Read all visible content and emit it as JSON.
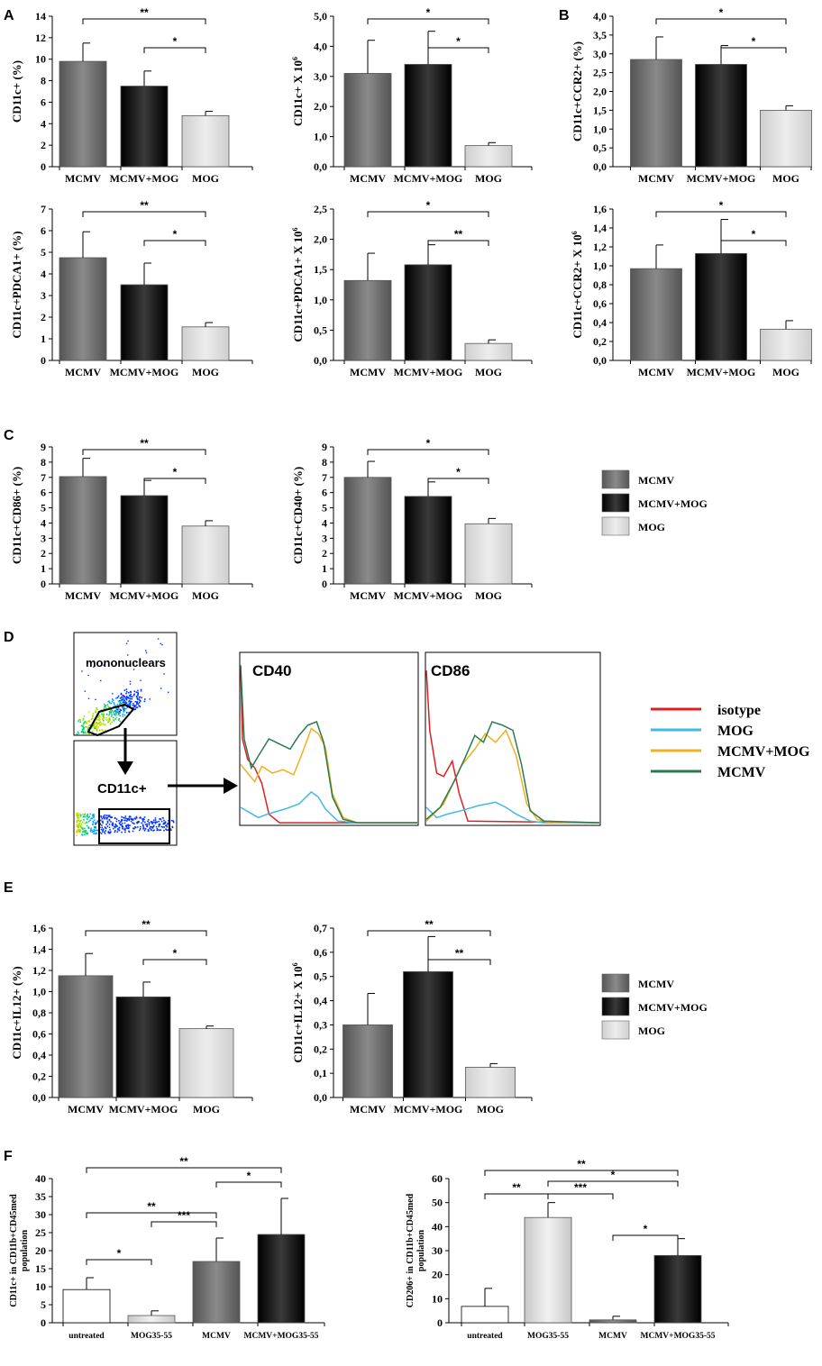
{
  "colors": {
    "mcmv": "#777777",
    "mcmv_mog": "#1a1a1a",
    "mog": "#dcdcdc",
    "untreated": "#ffffff",
    "iso": "#e02020",
    "mog_line": "#40b8e8",
    "mcmv_mog_line": "#f0b020",
    "mcmv_line": "#2a7a50"
  },
  "panels": {
    "A": "A",
    "B": "B",
    "C": "C",
    "D": "D",
    "E": "E",
    "F": "F"
  },
  "legend_bars": [
    {
      "label": "MCMV",
      "color": "mcmv"
    },
    {
      "label": "MCMV+MOG",
      "color": "mcmv_mog"
    },
    {
      "label": "MOG",
      "color": "mog"
    }
  ],
  "flow": {
    "gate1_label": "mononuclears",
    "gate2_label": "CD11c+",
    "hist1_title": "CD40",
    "hist2_title": "CD86",
    "legend": [
      {
        "label": "isotype",
        "color": "iso"
      },
      {
        "label": "MOG",
        "color": "mog_line"
      },
      {
        "label": "MCMV+MOG",
        "color": "mcmv_mog_line"
      },
      {
        "label": "MCMV",
        "color": "mcmv_line"
      }
    ]
  },
  "chart_data": [
    {
      "id": "A1",
      "type": "bar",
      "ylabel": "CD11c+   (%)",
      "categories": [
        "MCMV",
        "MCMV+MOG",
        "MOG"
      ],
      "values": [
        9.8,
        7.5,
        4.75
      ],
      "errors": [
        1.7,
        1.4,
        0.4
      ],
      "ylim": [
        0,
        14
      ],
      "yticks": [
        "0",
        "2",
        "4",
        "6",
        "8",
        "10",
        "12",
        "14"
      ],
      "sig": [
        {
          "from": 0,
          "to": 2,
          "label": "**"
        },
        {
          "from": 1,
          "to": 2,
          "label": "*"
        }
      ]
    },
    {
      "id": "A2",
      "type": "bar",
      "ylabel": "CD11c+ X 10",
      "ysup": "6",
      "categories": [
        "MCMV",
        "MCMV+MOG",
        "MOG"
      ],
      "values": [
        3.1,
        3.4,
        0.7
      ],
      "errors": [
        1.1,
        1.1,
        0.1
      ],
      "ylim": [
        0,
        5
      ],
      "yticks": [
        "0,0",
        "1,0",
        "2,0",
        "3,0",
        "4,0",
        "5,0"
      ],
      "sig": [
        {
          "from": 0,
          "to": 2,
          "label": "*"
        },
        {
          "from": 1,
          "to": 2,
          "label": "*"
        }
      ]
    },
    {
      "id": "B1",
      "type": "bar",
      "ylabel": "CD11c+CCR2+   (%)",
      "categories": [
        "MCMV",
        "MCMV+MOG",
        "MOG"
      ],
      "values": [
        2.85,
        2.72,
        1.5
      ],
      "errors": [
        0.6,
        0.5,
        0.12
      ],
      "ylim": [
        0,
        4
      ],
      "yticks": [
        "0,0",
        "0,5",
        "1,0",
        "1,5",
        "2,0",
        "2,5",
        "3,0",
        "3,5",
        "4,0"
      ],
      "sig": [
        {
          "from": 0,
          "to": 2,
          "label": "*"
        },
        {
          "from": 1,
          "to": 2,
          "label": "*"
        }
      ]
    },
    {
      "id": "A3",
      "type": "bar",
      "ylabel": "CD11c+PDCA1+   (%)",
      "categories": [
        "MCMV",
        "MCMV+MOG",
        "MOG"
      ],
      "values": [
        4.75,
        3.5,
        1.55
      ],
      "errors": [
        1.2,
        1.0,
        0.2
      ],
      "ylim": [
        0,
        7
      ],
      "yticks": [
        "0",
        "1",
        "2",
        "3",
        "4",
        "5",
        "6",
        "7"
      ],
      "sig": [
        {
          "from": 0,
          "to": 2,
          "label": "**"
        },
        {
          "from": 1,
          "to": 2,
          "label": "*"
        }
      ]
    },
    {
      "id": "A4",
      "type": "bar",
      "ylabel": "CD11c+PDCA1+  X 10",
      "ysup": "6",
      "categories": [
        "MCMV",
        "MCMV+MOG",
        "MOG"
      ],
      "values": [
        1.32,
        1.58,
        0.28
      ],
      "errors": [
        0.45,
        0.33,
        0.06
      ],
      "ylim": [
        0,
        2.5
      ],
      "yticks": [
        "0,0",
        "0,5",
        "1,0",
        "1,5",
        "2,0",
        "2,5"
      ],
      "sig": [
        {
          "from": 0,
          "to": 2,
          "label": "*"
        },
        {
          "from": 1,
          "to": 2,
          "label": "**"
        }
      ]
    },
    {
      "id": "B2",
      "type": "bar",
      "ylabel": "CD11c+CCR2+ X 10",
      "ysup": "6",
      "categories": [
        "MCMV",
        "MCMV+MOG",
        "MOG"
      ],
      "values": [
        0.97,
        1.13,
        0.33
      ],
      "errors": [
        0.25,
        0.36,
        0.09
      ],
      "ylim": [
        0,
        1.6
      ],
      "yticks": [
        "0,0",
        "0,2",
        "0,4",
        "0,6",
        "0,8",
        "1,0",
        "1,2",
        "1,4",
        "1,6"
      ],
      "sig": [
        {
          "from": 0,
          "to": 2,
          "label": "*"
        },
        {
          "from": 1,
          "to": 2,
          "label": "*"
        }
      ]
    },
    {
      "id": "C1",
      "type": "bar",
      "ylabel": "CD11c+CD86+  (%)",
      "categories": [
        "MCMV",
        "MCMV+MOG",
        "MOG"
      ],
      "values": [
        7.05,
        5.8,
        3.8
      ],
      "errors": [
        1.2,
        1.0,
        0.35
      ],
      "ylim": [
        0,
        9
      ],
      "yticks": [
        "0",
        "1",
        "2",
        "3",
        "4",
        "5",
        "6",
        "7",
        "8",
        "9"
      ],
      "sig": [
        {
          "from": 0,
          "to": 2,
          "label": "**"
        },
        {
          "from": 1,
          "to": 2,
          "label": "*"
        }
      ]
    },
    {
      "id": "C2",
      "type": "bar",
      "ylabel": "CD11c+CD40+  (%)",
      "categories": [
        "MCMV",
        "MCMV+MOG",
        "MOG"
      ],
      "values": [
        7.0,
        5.75,
        3.95
      ],
      "errors": [
        1.05,
        0.95,
        0.35
      ],
      "ylim": [
        0,
        9
      ],
      "yticks": [
        "0",
        "1",
        "2",
        "3",
        "4",
        "5",
        "6",
        "7",
        "8",
        "9"
      ],
      "sig": [
        {
          "from": 0,
          "to": 2,
          "label": "*"
        },
        {
          "from": 1,
          "to": 2,
          "label": "*"
        }
      ]
    },
    {
      "id": "E1",
      "type": "bar",
      "ylabel": "CD11c+IL12+   (%)",
      "categories": [
        "MCMV",
        "MCMV+MOG",
        "MOG"
      ],
      "values": [
        1.15,
        0.95,
        0.65
      ],
      "errors": [
        0.21,
        0.14,
        0.025
      ],
      "ylim": [
        0,
        1.6
      ],
      "yticks": [
        "0,0",
        "0,2",
        "0,4",
        "0,6",
        "0,8",
        "1,0",
        "1,2",
        "1,4",
        "1,6"
      ],
      "sig": [
        {
          "from": 0,
          "to": 2,
          "label": "**"
        },
        {
          "from": 1,
          "to": 2,
          "label": "*"
        }
      ]
    },
    {
      "id": "E2",
      "type": "bar",
      "ylabel": "CD11c+IL12+  X 10",
      "ysup": "6",
      "categories": [
        "MCMV",
        "MCMV+MOG",
        "MOG"
      ],
      "values": [
        0.3,
        0.52,
        0.125
      ],
      "errors": [
        0.13,
        0.145,
        0.015
      ],
      "ylim": [
        0,
        0.7
      ],
      "yticks": [
        "0,0",
        "0,1",
        "0,2",
        "0,3",
        "0,4",
        "0,5",
        "0,6",
        "0,7"
      ],
      "sig": [
        {
          "from": 0,
          "to": 2,
          "label": "**"
        },
        {
          "from": 1,
          "to": 2,
          "label": "**"
        }
      ]
    },
    {
      "id": "F1",
      "type": "bar",
      "ylabel": "CD11c+ in CD11b+CD45med",
      "ylabel2": "population",
      "categories": [
        "untreated",
        "MOG35-55",
        "MCMV",
        "MCMV+MOG35-55"
      ],
      "values": [
        9.2,
        2.0,
        17.0,
        24.5
      ],
      "errors": [
        3.3,
        1.3,
        6.5,
        10.0
      ],
      "ylim": [
        0,
        40
      ],
      "yticks": [
        "0",
        "5",
        "10",
        "15",
        "20",
        "25",
        "30",
        "35",
        "40"
      ],
      "sig": [
        {
          "from": 0,
          "to": 3,
          "label": "**"
        },
        {
          "from": 2,
          "to": 3,
          "label": "*"
        },
        {
          "from": 0,
          "to": 2,
          "label": "**"
        },
        {
          "from": 1,
          "to": 2,
          "label": "***"
        },
        {
          "from": 0,
          "to": 1,
          "label": "*"
        }
      ]
    },
    {
      "id": "F2",
      "type": "bar",
      "ylabel": "CD206+ in CD11b+CD45med",
      "ylabel2": "population",
      "categories": [
        "untreated",
        "MOG35-55",
        "MCMV",
        "MCMV+MOG35-55"
      ],
      "values": [
        6.8,
        43.8,
        1.2,
        28.0
      ],
      "errors": [
        7.5,
        6.2,
        1.5,
        7.0
      ],
      "ylim": [
        0,
        60
      ],
      "yticks": [
        "0",
        "10",
        "20",
        "30",
        "40",
        "50",
        "60"
      ],
      "sig": [
        {
          "from": 0,
          "to": 3,
          "label": "**"
        },
        {
          "from": 1,
          "to": 3,
          "label": "*"
        },
        {
          "from": 0,
          "to": 1,
          "label": "**"
        },
        {
          "from": 1,
          "to": 2,
          "label": "***"
        },
        {
          "from": 2,
          "to": 3,
          "label": "*"
        }
      ]
    }
  ]
}
